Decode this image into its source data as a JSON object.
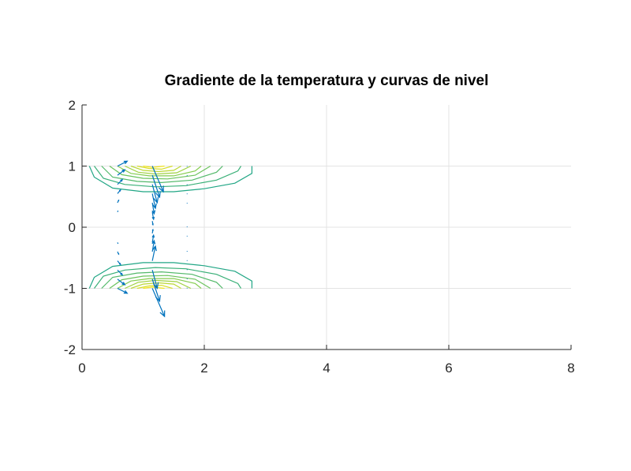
{
  "chart_data": {
    "type": "contour",
    "title": "Gradiente de la temperatura y curvas de nivel",
    "xlabel": "",
    "ylabel": "",
    "xlim": [
      0,
      8
    ],
    "ylim": [
      -2,
      2
    ],
    "xticks": [
      "0",
      "2",
      "4",
      "6",
      "8"
    ],
    "yticks": [
      "-2",
      "-1",
      "0",
      "1",
      "2"
    ],
    "grid": true,
    "colors": {
      "contour_low": "#21a685",
      "contour_mid": "#84cc4f",
      "contour_high": "#f2e41b",
      "quiver": "#0072bd",
      "grid": "#e3e3e3",
      "axis": "#262626"
    },
    "contours": {
      "top": [
        {
          "level": 1,
          "points": [
            [
              0.12,
              1.0
            ],
            [
              0.2,
              0.82
            ],
            [
              0.5,
              0.64
            ],
            [
              1.0,
              0.58
            ],
            [
              1.5,
              0.58
            ],
            [
              2.0,
              0.63
            ],
            [
              2.5,
              0.72
            ],
            [
              2.78,
              0.88
            ],
            [
              2.78,
              1.0
            ]
          ]
        },
        {
          "level": 2,
          "points": [
            [
              0.2,
              1.0
            ],
            [
              0.35,
              0.8
            ],
            [
              0.7,
              0.7
            ],
            [
              1.2,
              0.66
            ],
            [
              1.7,
              0.68
            ],
            [
              2.2,
              0.77
            ],
            [
              2.55,
              0.92
            ],
            [
              2.6,
              1.0
            ]
          ]
        },
        {
          "level": 3,
          "points": [
            [
              0.32,
              1.0
            ],
            [
              0.5,
              0.82
            ],
            [
              0.9,
              0.75
            ],
            [
              1.3,
              0.73
            ],
            [
              1.8,
              0.77
            ],
            [
              2.2,
              0.9
            ],
            [
              2.3,
              1.0
            ]
          ]
        },
        {
          "level": 4,
          "points": [
            [
              0.45,
              1.0
            ],
            [
              0.65,
              0.86
            ],
            [
              1.0,
              0.8
            ],
            [
              1.4,
              0.79
            ],
            [
              1.85,
              0.85
            ],
            [
              2.1,
              1.0
            ]
          ]
        },
        {
          "level": 5,
          "points": [
            [
              0.58,
              1.0
            ],
            [
              0.8,
              0.88
            ],
            [
              1.1,
              0.84
            ],
            [
              1.5,
              0.84
            ],
            [
              1.85,
              0.92
            ],
            [
              1.95,
              1.0
            ]
          ]
        },
        {
          "level": 6,
          "points": [
            [
              0.7,
              1.0
            ],
            [
              0.92,
              0.9
            ],
            [
              1.2,
              0.87
            ],
            [
              1.55,
              0.89
            ],
            [
              1.78,
              1.0
            ]
          ]
        },
        {
          "level": 7,
          "points": [
            [
              0.8,
              1.0
            ],
            [
              1.0,
              0.93
            ],
            [
              1.25,
              0.91
            ],
            [
              1.5,
              0.93
            ],
            [
              1.62,
              1.0
            ]
          ]
        },
        {
          "level": 8,
          "points": [
            [
              0.9,
              1.0
            ],
            [
              1.1,
              0.96
            ],
            [
              1.3,
              0.95
            ],
            [
              1.48,
              1.0
            ]
          ]
        },
        {
          "level": 9,
          "points": [
            [
              1.0,
              1.0
            ],
            [
              1.15,
              0.98
            ],
            [
              1.35,
              1.0
            ]
          ]
        }
      ],
      "bottom": [
        {
          "level": 1,
          "points": [
            [
              0.12,
              -1.0
            ],
            [
              0.2,
              -0.82
            ],
            [
              0.5,
              -0.64
            ],
            [
              1.0,
              -0.58
            ],
            [
              1.5,
              -0.58
            ],
            [
              2.0,
              -0.63
            ],
            [
              2.5,
              -0.72
            ],
            [
              2.78,
              -0.88
            ],
            [
              2.78,
              -1.0
            ]
          ]
        },
        {
          "level": 2,
          "points": [
            [
              0.2,
              -1.0
            ],
            [
              0.35,
              -0.8
            ],
            [
              0.7,
              -0.7
            ],
            [
              1.2,
              -0.66
            ],
            [
              1.7,
              -0.68
            ],
            [
              2.2,
              -0.77
            ],
            [
              2.55,
              -0.92
            ],
            [
              2.6,
              -1.0
            ]
          ]
        },
        {
          "level": 3,
          "points": [
            [
              0.32,
              -1.0
            ],
            [
              0.5,
              -0.82
            ],
            [
              0.9,
              -0.75
            ],
            [
              1.3,
              -0.73
            ],
            [
              1.8,
              -0.77
            ],
            [
              2.2,
              -0.9
            ],
            [
              2.3,
              -1.0
            ]
          ]
        },
        {
          "level": 4,
          "points": [
            [
              0.45,
              -1.0
            ],
            [
              0.65,
              -0.86
            ],
            [
              1.0,
              -0.8
            ],
            [
              1.4,
              -0.79
            ],
            [
              1.85,
              -0.85
            ],
            [
              2.1,
              -1.0
            ]
          ]
        },
        {
          "level": 5,
          "points": [
            [
              0.58,
              -1.0
            ],
            [
              0.8,
              -0.88
            ],
            [
              1.1,
              -0.84
            ],
            [
              1.5,
              -0.84
            ],
            [
              1.85,
              -0.92
            ],
            [
              1.95,
              -1.0
            ]
          ]
        },
        {
          "level": 6,
          "points": [
            [
              0.7,
              -1.0
            ],
            [
              0.92,
              -0.9
            ],
            [
              1.2,
              -0.87
            ],
            [
              1.55,
              -0.89
            ],
            [
              1.78,
              -1.0
            ]
          ]
        },
        {
          "level": 7,
          "points": [
            [
              0.8,
              -1.0
            ],
            [
              1.0,
              -0.93
            ],
            [
              1.25,
              -0.91
            ],
            [
              1.5,
              -0.93
            ],
            [
              1.62,
              -1.0
            ]
          ]
        },
        {
          "level": 8,
          "points": [
            [
              0.9,
              -1.0
            ],
            [
              1.1,
              -0.96
            ],
            [
              1.3,
              -0.95
            ],
            [
              1.48,
              -1.0
            ]
          ]
        },
        {
          "level": 9,
          "points": [
            [
              1.0,
              -1.0
            ],
            [
              1.15,
              -0.98
            ],
            [
              1.35,
              -1.0
            ]
          ]
        }
      ]
    },
    "quiver": [
      {
        "x": 0.58,
        "y": 1.0,
        "u": 0.16,
        "v": 0.08
      },
      {
        "x": 0.58,
        "y": 0.85,
        "u": 0.12,
        "v": 0.09
      },
      {
        "x": 0.58,
        "y": 0.7,
        "u": 0.08,
        "v": 0.08
      },
      {
        "x": 0.58,
        "y": 0.55,
        "u": 0.05,
        "v": 0.06
      },
      {
        "x": 0.58,
        "y": 0.4,
        "u": 0.02,
        "v": 0.04
      },
      {
        "x": 0.58,
        "y": 0.25,
        "u": 0.01,
        "v": 0.02
      },
      {
        "x": 0.58,
        "y": -0.25,
        "u": 0.01,
        "v": -0.02
      },
      {
        "x": 0.58,
        "y": -0.4,
        "u": 0.02,
        "v": -0.04
      },
      {
        "x": 0.58,
        "y": -0.55,
        "u": 0.05,
        "v": -0.06
      },
      {
        "x": 0.58,
        "y": -0.7,
        "u": 0.08,
        "v": -0.08
      },
      {
        "x": 0.58,
        "y": -0.85,
        "u": 0.12,
        "v": -0.09
      },
      {
        "x": 0.58,
        "y": -1.0,
        "u": 0.16,
        "v": -0.08
      },
      {
        "x": 1.15,
        "y": 1.0,
        "u": 0.18,
        "v": -0.42
      },
      {
        "x": 1.15,
        "y": 0.85,
        "u": 0.12,
        "v": -0.36
      },
      {
        "x": 1.15,
        "y": 0.7,
        "u": 0.08,
        "v": -0.3
      },
      {
        "x": 1.15,
        "y": 0.55,
        "u": 0.05,
        "v": -0.24
      },
      {
        "x": 1.15,
        "y": 0.4,
        "u": 0.03,
        "v": -0.18
      },
      {
        "x": 1.15,
        "y": 0.25,
        "u": 0.02,
        "v": -0.12
      },
      {
        "x": 1.15,
        "y": 0.1,
        "u": 0.01,
        "v": -0.06
      },
      {
        "x": 1.15,
        "y": -0.1,
        "u": 0.01,
        "v": 0.06
      },
      {
        "x": 1.15,
        "y": -0.25,
        "u": 0.02,
        "v": 0.12
      },
      {
        "x": 1.15,
        "y": -0.4,
        "u": 0.03,
        "v": 0.18
      },
      {
        "x": 1.15,
        "y": -0.55,
        "u": 0.05,
        "v": 0.24
      },
      {
        "x": 1.15,
        "y": -0.7,
        "u": 0.08,
        "v": -0.3
      },
      {
        "x": 1.15,
        "y": -0.85,
        "u": 0.12,
        "v": -0.36
      },
      {
        "x": 1.15,
        "y": -1.0,
        "u": 0.2,
        "v": -0.46
      },
      {
        "x": 1.72,
        "y": 1.0,
        "u": 0.0,
        "v": -0.01
      },
      {
        "x": 1.72,
        "y": 0.85,
        "u": 0.0,
        "v": -0.01
      },
      {
        "x": 1.72,
        "y": 0.7,
        "u": 0.0,
        "v": -0.01
      },
      {
        "x": 1.72,
        "y": 0.55,
        "u": 0.0,
        "v": -0.01
      },
      {
        "x": 1.72,
        "y": 0.4,
        "u": 0.0,
        "v": -0.01
      },
      {
        "x": 1.72,
        "y": 0.0,
        "u": 0.0,
        "v": 0.01
      },
      {
        "x": 1.72,
        "y": -0.15,
        "u": 0.0,
        "v": 0.01
      },
      {
        "x": 1.72,
        "y": -0.4,
        "u": 0.0,
        "v": 0.01
      },
      {
        "x": 1.72,
        "y": -0.55,
        "u": 0.0,
        "v": 0.01
      },
      {
        "x": 1.72,
        "y": -0.7,
        "u": 0.0,
        "v": 0.01
      },
      {
        "x": 1.72,
        "y": -0.85,
        "u": 0.0,
        "v": 0.01
      },
      {
        "x": 1.72,
        "y": -1.0,
        "u": 0.0,
        "v": 0.01
      }
    ]
  }
}
